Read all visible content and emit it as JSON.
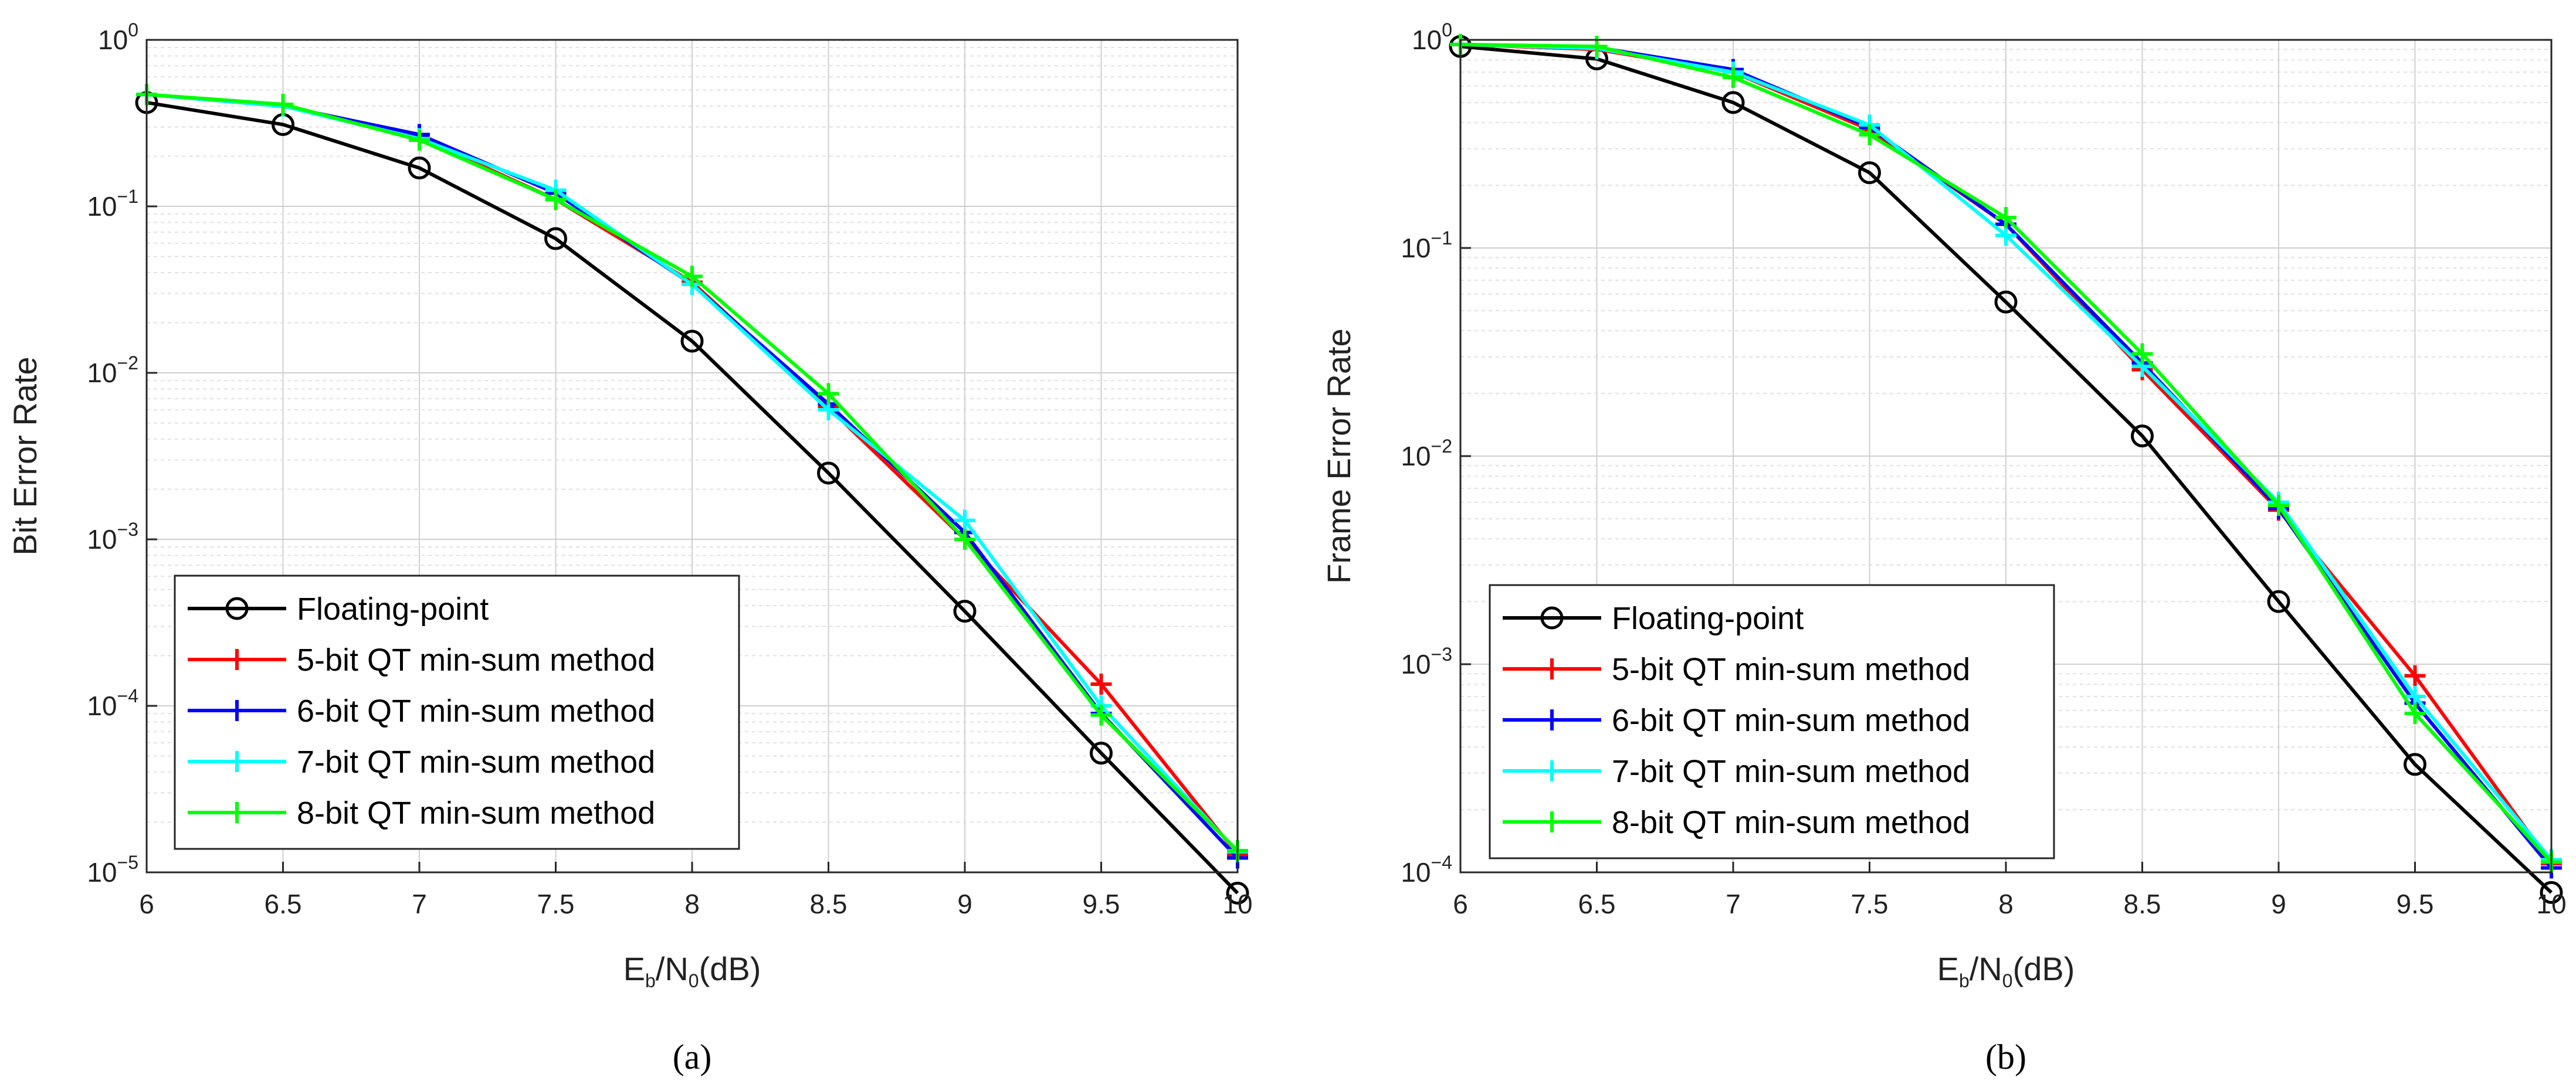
{
  "chart_data": [
    {
      "type": "line",
      "panel": "(a)",
      "ylabel": "Bit Error Rate",
      "xlabel": "E_b/N_0(dB)",
      "xlim": [
        6,
        10
      ],
      "ylim_log10": [
        -5,
        0
      ],
      "yscale": "log",
      "xticks": [
        "6",
        "6.5",
        "7",
        "7.5",
        "8",
        "8.5",
        "9",
        "9.5",
        "10"
      ],
      "x": [
        6,
        6.5,
        7,
        7.5,
        8,
        8.5,
        9,
        9.5,
        10
      ],
      "grid": true,
      "legend_position": "bottom-left",
      "series": [
        {
          "name": "Floating-point",
          "color": "#000000",
          "marker": "circle",
          "values": [
            0.42,
            0.31,
            0.17,
            0.064,
            0.0155,
            0.0025,
            0.00037,
            5.2e-05,
            7.5e-06
          ]
        },
        {
          "name": "5-bit QT min-sum method",
          "color": "#ff0000",
          "marker": "plus",
          "values": [
            0.47,
            0.4,
            0.26,
            0.11,
            0.035,
            0.0062,
            0.001,
            0.000135,
            1.28e-05
          ]
        },
        {
          "name": "6-bit QT min-sum method",
          "color": "#0000ff",
          "marker": "plus",
          "values": [
            0.47,
            0.4,
            0.27,
            0.12,
            0.034,
            0.0065,
            0.0011,
            9e-05,
            1.22e-05
          ]
        },
        {
          "name": "7-bit QT min-sum method",
          "color": "#00ffff",
          "marker": "plus",
          "values": [
            0.47,
            0.4,
            0.255,
            0.125,
            0.034,
            0.006,
            0.0013,
            0.0001,
            1.33e-05
          ]
        },
        {
          "name": "8-bit QT min-sum method",
          "color": "#00ff00",
          "marker": "plus",
          "values": [
            0.47,
            0.41,
            0.25,
            0.11,
            0.038,
            0.0075,
            0.001,
            8.8e-05,
            1.35e-05
          ]
        }
      ]
    },
    {
      "type": "line",
      "panel": "(b)",
      "ylabel": "Frame Error Rate",
      "xlabel": "E_b/N_0(dB)",
      "xlim": [
        6,
        10
      ],
      "ylim_log10": [
        -4,
        0
      ],
      "yscale": "log",
      "xticks": [
        "6",
        "6.5",
        "7",
        "7.5",
        "8",
        "8.5",
        "9",
        "9.5",
        "10"
      ],
      "x": [
        6,
        6.5,
        7,
        7.5,
        8,
        8.5,
        9,
        9.5,
        10
      ],
      "grid": true,
      "legend_position": "bottom-left",
      "series": [
        {
          "name": "Floating-point",
          "color": "#000000",
          "marker": "circle",
          "values": [
            0.93,
            0.81,
            0.5,
            0.23,
            0.055,
            0.0125,
            0.002,
            0.00033,
            8e-05
          ]
        },
        {
          "name": "5-bit QT min-sum method",
          "color": "#ff0000",
          "marker": "plus",
          "values": [
            0.95,
            0.9,
            0.7,
            0.37,
            0.13,
            0.026,
            0.0055,
            0.00088,
            0.00011
          ]
        },
        {
          "name": "6-bit QT min-sum method",
          "color": "#0000ff",
          "marker": "plus",
          "values": [
            0.95,
            0.92,
            0.72,
            0.38,
            0.13,
            0.028,
            0.0056,
            0.00065,
            0.000105
          ]
        },
        {
          "name": "7-bit QT min-sum method",
          "color": "#00ffff",
          "marker": "plus",
          "values": [
            0.95,
            0.91,
            0.7,
            0.39,
            0.115,
            0.027,
            0.006,
            0.0007,
            0.000115
          ]
        },
        {
          "name": "8-bit QT min-sum method",
          "color": "#00ff00",
          "marker": "plus",
          "values": [
            0.95,
            0.93,
            0.66,
            0.35,
            0.14,
            0.031,
            0.0058,
            0.00058,
            0.000112
          ]
        }
      ]
    }
  ]
}
